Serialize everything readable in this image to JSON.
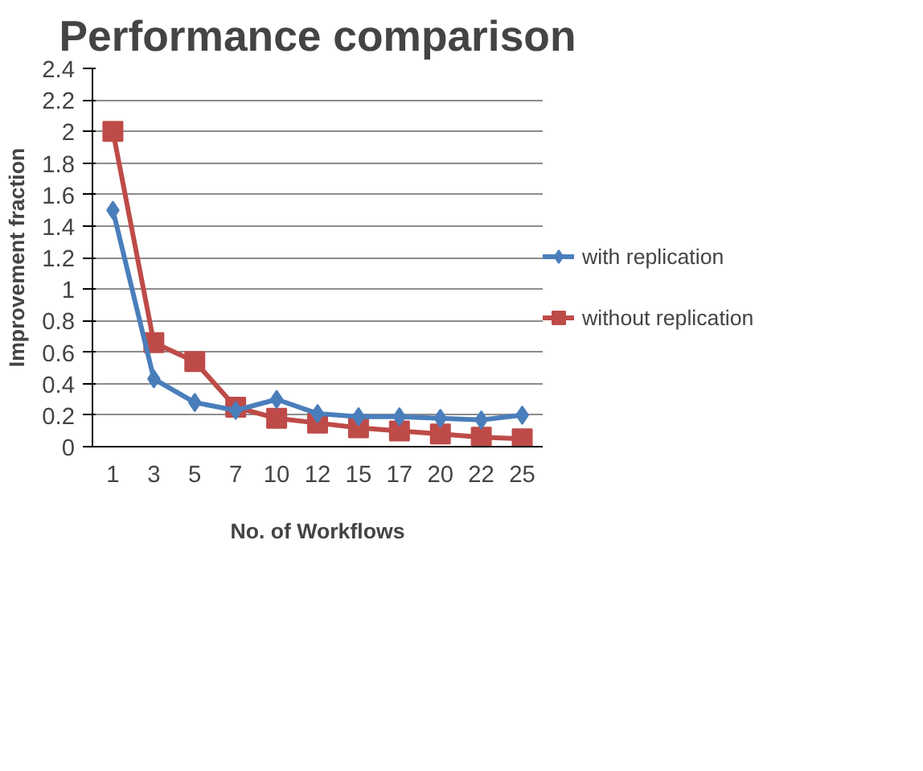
{
  "chart_data": {
    "type": "line",
    "title": "Performance comparison",
    "xlabel": "No. of Workflows",
    "ylabel": "Improvement fraction",
    "categories": [
      "1",
      "3",
      "5",
      "7",
      "10",
      "12",
      "15",
      "17",
      "20",
      "22",
      "25"
    ],
    "series": [
      {
        "name": "with replication",
        "color": "#4a7ebb",
        "marker": "diamond",
        "values": [
          1.5,
          0.43,
          0.28,
          0.23,
          0.3,
          0.21,
          0.19,
          0.19,
          0.18,
          0.17,
          0.2
        ]
      },
      {
        "name": "without replication",
        "color": "#be4b48",
        "marker": "square",
        "values": [
          2.0,
          0.66,
          0.54,
          0.25,
          0.18,
          0.15,
          0.12,
          0.1,
          0.08,
          0.06,
          0.05
        ]
      }
    ],
    "ylim": [
      0,
      2.4
    ],
    "yticks": [
      0,
      0.2,
      0.4,
      0.6,
      0.8,
      1,
      1.2,
      1.4,
      1.6,
      1.8,
      2,
      2.2,
      2.4
    ],
    "grid": "y",
    "legend": "right",
    "line_style": "solid"
  }
}
